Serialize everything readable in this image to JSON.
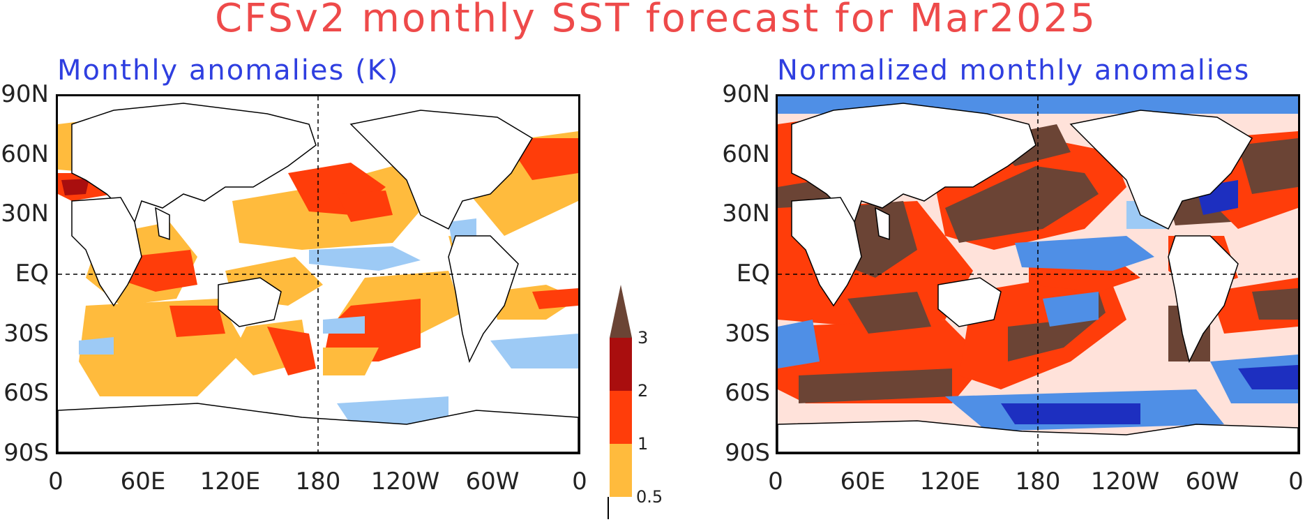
{
  "title": "CFSv2 monthly SST forecast for Mar2025",
  "panels": {
    "left": {
      "subtitle": "Monthly anomalies (K)"
    },
    "right": {
      "subtitle": "Normalized monthly anomalies"
    }
  },
  "axes": {
    "y_labels": [
      "90N",
      "60N",
      "30N",
      "EQ",
      "30S",
      "60S",
      "90S"
    ],
    "x_labels": [
      "0",
      "60E",
      "120E",
      "180",
      "120W",
      "60W",
      "0"
    ]
  },
  "colorbar": {
    "labels": [
      "3",
      "2",
      "1",
      "0.5"
    ],
    "colors": [
      "#6b4435",
      "#a90e0e",
      "#ff3d0a",
      "#ffbb3d"
    ]
  },
  "colors": {
    "title": "#ee4a4a",
    "subtitle": "#2f3fe0",
    "warm_light": "#ffbb3d",
    "warm_mid": "#ff3d0a",
    "warm_dark": "#a90e0e",
    "extreme": "#6b4435",
    "cool_light": "#9dcaf5",
    "cool_mid": "#4f8fe6",
    "cool_dark": "#1d2fc0"
  }
}
